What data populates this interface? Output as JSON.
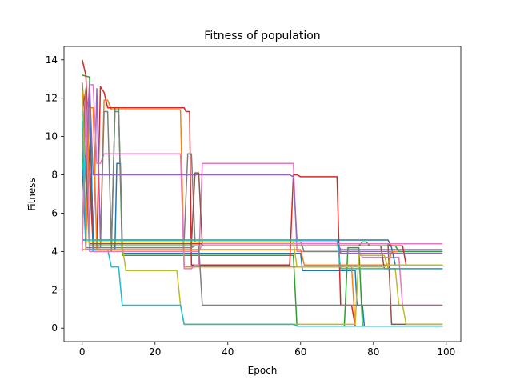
{
  "chart_data": {
    "type": "line",
    "title": "Fitness of population",
    "xlabel": "Epoch",
    "ylabel": "Fitness",
    "xlim": [
      -5,
      104
    ],
    "ylim": [
      -0.7,
      14.7
    ],
    "xticks": [
      0,
      20,
      40,
      60,
      80,
      100
    ],
    "yticks": [
      0,
      2,
      4,
      6,
      8,
      10,
      12,
      14
    ],
    "grid": false,
    "legend": "none",
    "series": [
      {
        "color": "#1f77b4",
        "points": [
          [
            0,
            8.5
          ],
          [
            1,
            4.3
          ],
          [
            2,
            12.3
          ],
          [
            3,
            4.1
          ],
          [
            9,
            4.1
          ],
          [
            9.5,
            8.6
          ],
          [
            10.5,
            8.6
          ],
          [
            11,
            3.9
          ],
          [
            60,
            3.9
          ],
          [
            60.5,
            3.0
          ],
          [
            75,
            3.0
          ],
          [
            75.5,
            1.2
          ],
          [
            77,
            1.2
          ],
          [
            77.5,
            0.1
          ],
          [
            99,
            0.1
          ]
        ]
      },
      {
        "color": "#ff7f0e",
        "points": [
          [
            0,
            12.8
          ],
          [
            1,
            10.6
          ],
          [
            3,
            4.5
          ],
          [
            5,
            4.5
          ],
          [
            6,
            11.9
          ],
          [
            7,
            11.9
          ],
          [
            8,
            11.4
          ],
          [
            27,
            11.4
          ],
          [
            28,
            3.2
          ],
          [
            59,
            3.2
          ],
          [
            60,
            3.2
          ],
          [
            74,
            3.2
          ],
          [
            75,
            0.1
          ],
          [
            99,
            0.1
          ]
        ]
      },
      {
        "color": "#2ca02c",
        "points": [
          [
            0,
            13.2
          ],
          [
            2,
            13.1
          ],
          [
            3,
            4.0
          ],
          [
            8,
            4.0
          ],
          [
            9,
            11.5
          ],
          [
            10,
            11.5
          ],
          [
            11,
            3.8
          ],
          [
            58,
            3.8
          ],
          [
            59,
            0.1
          ],
          [
            72,
            0.1
          ],
          [
            73,
            4.2
          ],
          [
            76,
            4.2
          ],
          [
            77,
            0.1
          ],
          [
            99,
            0.1
          ]
        ]
      },
      {
        "color": "#d62728",
        "points": [
          [
            0,
            14.0
          ],
          [
            1,
            13.2
          ],
          [
            3,
            4.2
          ],
          [
            4,
            4.2
          ],
          [
            5,
            12.6
          ],
          [
            6,
            12.3
          ],
          [
            7,
            11.5
          ],
          [
            28,
            11.5
          ],
          [
            28.5,
            11.3
          ],
          [
            29.5,
            11.3
          ],
          [
            30,
            3.3
          ],
          [
            57,
            3.3
          ],
          [
            58,
            8.0
          ],
          [
            59,
            8.0
          ],
          [
            60,
            7.9
          ],
          [
            70,
            7.9
          ],
          [
            71,
            1.2
          ],
          [
            74,
            1.2
          ],
          [
            75,
            0.1
          ],
          [
            99,
            0.1
          ]
        ]
      },
      {
        "color": "#9467bd",
        "points": [
          [
            0,
            12.5
          ],
          [
            1,
            4.1
          ],
          [
            3,
            4.1
          ],
          [
            4,
            12.5
          ],
          [
            5,
            4.5
          ],
          [
            58,
            4.5
          ],
          [
            59,
            4.5
          ],
          [
            70,
            4.5
          ],
          [
            71,
            4.1
          ],
          [
            81,
            4.1
          ],
          [
            82,
            4.1
          ],
          [
            99,
            4.1
          ]
        ]
      },
      {
        "color": "#8c564b",
        "points": [
          [
            0,
            11.4
          ],
          [
            1,
            12.4
          ],
          [
            2,
            4.4
          ],
          [
            58,
            4.4
          ],
          [
            59,
            4.4
          ],
          [
            84,
            4.4
          ],
          [
            85,
            0.2
          ],
          [
            99,
            0.2
          ]
        ]
      },
      {
        "color": "#e377c2",
        "points": [
          [
            0,
            11.8
          ],
          [
            1,
            10.0
          ],
          [
            2,
            12.7
          ],
          [
            3,
            12.7
          ],
          [
            4,
            8.6
          ],
          [
            5,
            8.6
          ],
          [
            6,
            9.1
          ],
          [
            27,
            9.1
          ],
          [
            28,
            3.1
          ],
          [
            30,
            3.1
          ],
          [
            31,
            3.3
          ],
          [
            32,
            3.3
          ],
          [
            33,
            8.6
          ],
          [
            58,
            8.6
          ],
          [
            59,
            4.0
          ],
          [
            76,
            4.0
          ],
          [
            77,
            3.7
          ],
          [
            87,
            3.7
          ],
          [
            88,
            1.2
          ],
          [
            99,
            1.2
          ]
        ]
      },
      {
        "color": "#7f7f7f",
        "points": [
          [
            0,
            4.9
          ],
          [
            1,
            9.1
          ],
          [
            2,
            4.2
          ],
          [
            5,
            4.2
          ],
          [
            6,
            11.3
          ],
          [
            7,
            11.3
          ],
          [
            8,
            4.3
          ],
          [
            9,
            11.3
          ],
          [
            10,
            11.3
          ],
          [
            11,
            4.6
          ],
          [
            28,
            4.6
          ],
          [
            29,
            9.1
          ],
          [
            30,
            9.1
          ],
          [
            31,
            4.5
          ],
          [
            60,
            4.5
          ],
          [
            61,
            4.0
          ],
          [
            99,
            4.0
          ]
        ]
      },
      {
        "color": "#bcbd22",
        "points": [
          [
            0,
            12.0
          ],
          [
            1,
            8.7
          ],
          [
            2,
            4.3
          ],
          [
            11,
            4.3
          ],
          [
            12,
            3.0
          ],
          [
            26,
            3.0
          ],
          [
            27,
            1.2
          ],
          [
            28,
            0.2
          ],
          [
            58,
            0.2
          ],
          [
            59,
            0.2
          ],
          [
            75,
            0.2
          ],
          [
            76,
            3.8
          ],
          [
            83,
            3.8
          ],
          [
            84,
            3.1
          ],
          [
            86,
            3.1
          ],
          [
            87,
            1.2
          ],
          [
            88,
            1.2
          ],
          [
            89,
            0.2
          ],
          [
            99,
            0.2
          ]
        ]
      },
      {
        "color": "#17becf",
        "points": [
          [
            0,
            11.3
          ],
          [
            1,
            7.9
          ],
          [
            2,
            4.1
          ],
          [
            7,
            4.1
          ],
          [
            8,
            3.2
          ],
          [
            10,
            3.2
          ],
          [
            11,
            1.2
          ],
          [
            27,
            1.2
          ],
          [
            28,
            0.2
          ],
          [
            58,
            0.2
          ],
          [
            59,
            0.1
          ],
          [
            99,
            0.1
          ]
        ]
      },
      {
        "color": "#1f77b4",
        "points": [
          [
            0,
            4.6
          ],
          [
            1,
            4.6
          ],
          [
            2,
            12.0
          ],
          [
            3,
            4.6
          ],
          [
            57,
            4.6
          ],
          [
            58,
            4.6
          ],
          [
            84,
            4.6
          ],
          [
            85,
            4.2
          ],
          [
            86,
            3.3
          ],
          [
            99,
            3.3
          ]
        ]
      },
      {
        "color": "#ff7f0e",
        "points": [
          [
            0,
            4.1
          ],
          [
            1,
            4.1
          ],
          [
            2,
            11.5
          ],
          [
            3,
            11.5
          ],
          [
            4,
            4.1
          ],
          [
            60,
            4.1
          ],
          [
            61,
            3.3
          ],
          [
            84,
            3.3
          ],
          [
            85,
            4.0
          ],
          [
            99,
            4.0
          ]
        ]
      },
      {
        "color": "#2ca02c",
        "points": [
          [
            0,
            8.4
          ],
          [
            1,
            12.5
          ],
          [
            2,
            4.3
          ],
          [
            76,
            4.3
          ],
          [
            77,
            4.5
          ],
          [
            78,
            4.5
          ],
          [
            79,
            4.3
          ],
          [
            86,
            4.3
          ],
          [
            87,
            4.0
          ],
          [
            99,
            4.0
          ]
        ]
      },
      {
        "color": "#d62728",
        "points": [
          [
            0,
            4.4
          ],
          [
            1,
            12.2
          ],
          [
            2,
            4.4
          ],
          [
            84,
            4.4
          ],
          [
            85,
            4.3
          ],
          [
            88,
            4.3
          ],
          [
            89,
            3.3
          ],
          [
            99,
            3.3
          ]
        ]
      },
      {
        "color": "#9467bd",
        "points": [
          [
            0,
            8.0
          ],
          [
            1,
            8.0
          ],
          [
            2,
            12.8
          ],
          [
            3,
            8.0
          ],
          [
            57,
            8.0
          ],
          [
            58,
            7.9
          ],
          [
            59,
            4.6
          ],
          [
            70,
            4.6
          ],
          [
            71,
            3.9
          ],
          [
            99,
            3.9
          ]
        ]
      },
      {
        "color": "#8c564b",
        "points": [
          [
            0,
            9.0
          ],
          [
            1,
            9.0
          ],
          [
            2,
            4.4
          ],
          [
            30,
            4.4
          ],
          [
            31,
            8.1
          ],
          [
            32,
            8.1
          ],
          [
            33,
            4.3
          ],
          [
            82,
            4.3
          ],
          [
            83,
            3.1
          ],
          [
            99,
            3.1
          ]
        ]
      },
      {
        "color": "#e377c2",
        "points": [
          [
            0,
            4.0
          ],
          [
            1,
            12.3
          ],
          [
            2,
            4.0
          ],
          [
            31,
            4.0
          ],
          [
            32,
            4.0
          ],
          [
            33,
            4.4
          ],
          [
            99,
            4.4
          ]
        ]
      },
      {
        "color": "#7f7f7f",
        "points": [
          [
            0,
            12.8
          ],
          [
            1,
            4.2
          ],
          [
            30,
            4.2
          ],
          [
            31,
            4.3
          ],
          [
            32,
            4.3
          ],
          [
            33,
            1.2
          ],
          [
            99,
            1.2
          ]
        ]
      },
      {
        "color": "#bcbd22",
        "points": [
          [
            0,
            12.4
          ],
          [
            1,
            4.5
          ],
          [
            58,
            4.5
          ],
          [
            59,
            3.2
          ],
          [
            83,
            3.2
          ],
          [
            84,
            3.3
          ],
          [
            99,
            3.3
          ]
        ]
      },
      {
        "color": "#17becf",
        "points": [
          [
            0,
            10.8
          ],
          [
            1,
            4.6
          ],
          [
            70,
            4.6
          ],
          [
            71,
            3.1
          ],
          [
            99,
            3.1
          ]
        ]
      }
    ]
  }
}
